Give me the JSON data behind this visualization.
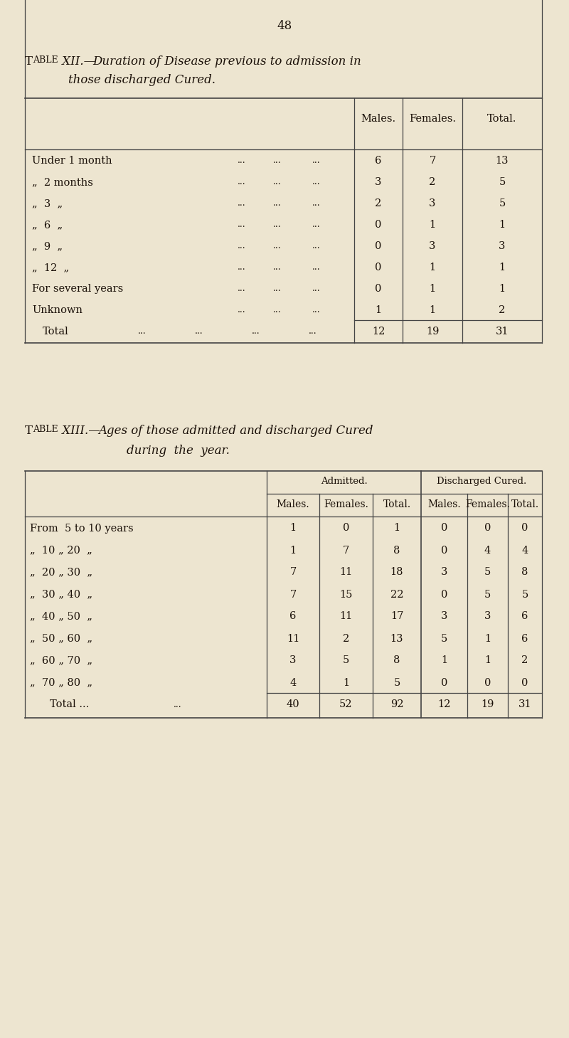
{
  "bg_color": "#ede5d0",
  "page_number": "48",
  "table12": {
    "title_line1": "Table XII.—Duration of Disease previous to admission in",
    "title_line2": "those discharged Cured.",
    "row_labels": [
      "Under 1 month",
      "„  2 months",
      "„  3  „",
      "„  6  „",
      "„  9  „",
      "„  12  „",
      "For several years",
      "Unknown"
    ],
    "dots": [
      "...",
      "...",
      "..."
    ],
    "males": [
      "6",
      "3",
      "2",
      "0",
      "0",
      "0",
      "0",
      "1",
      "12"
    ],
    "females": [
      "7",
      "2",
      "3",
      "1",
      "3",
      "1",
      "1",
      "1",
      "19"
    ],
    "totals": [
      "13",
      "5",
      "5",
      "1",
      "3",
      "1",
      "1",
      "2",
      "31"
    ]
  },
  "table13": {
    "title_line1": "Table XIII.—Ages of those admitted and discharged Cured",
    "title_line2": "during  the  year.",
    "row_labels": [
      "From  5 to 10 years",
      "„  10 „ 20  „",
      "„  20 „ 30  „",
      "„  30 „ 40  „",
      "„  40 „ 50  „",
      "„  50 „ 60  „",
      "„  60 „ 70  „",
      "„  70 „ 80  „"
    ],
    "adm_males": [
      "1",
      "1",
      "7",
      "7",
      "6",
      "11",
      "3",
      "4",
      "40"
    ],
    "adm_females": [
      "0",
      "7",
      "11",
      "15",
      "11",
      "2",
      "5",
      "1",
      "52"
    ],
    "adm_totals": [
      "1",
      "8",
      "18",
      "22",
      "17",
      "13",
      "8",
      "5",
      "92"
    ],
    "dis_males": [
      "0",
      "0",
      "3",
      "0",
      "3",
      "5",
      "1",
      "0",
      "12"
    ],
    "dis_females": [
      "0",
      "4",
      "5",
      "5",
      "3",
      "1",
      "1",
      "0",
      "19"
    ],
    "dis_totals": [
      "0",
      "4",
      "8",
      "5",
      "6",
      "6",
      "2",
      "0",
      "31"
    ]
  }
}
